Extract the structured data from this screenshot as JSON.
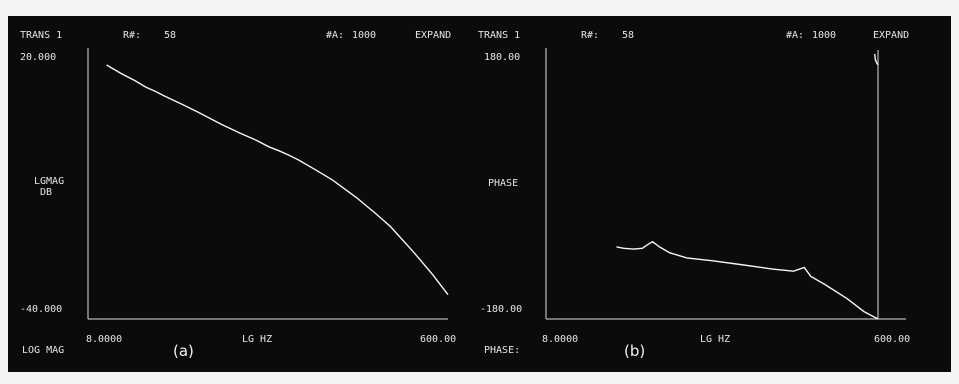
{
  "chart_data": [
    {
      "type": "line",
      "header": {
        "trans": "TRANS 1",
        "r_label": "R#:",
        "r_value": "58",
        "a_label": "#A:",
        "a_value": "1000",
        "mode": "EXPAND"
      },
      "ylabel": [
        "LGMAG",
        "DB"
      ],
      "xlabel": "LG HZ",
      "y_tick_labels": [
        "20.000",
        "-40.000"
      ],
      "x_tick_labels": [
        "8.0000",
        "600.00"
      ],
      "footer_label": "LOG MAG",
      "caption": "(a)",
      "ylim": [
        -40,
        20
      ],
      "xlim": [
        8,
        600
      ],
      "x_scale": "log",
      "grid": false,
      "series": [
        {
          "x": [
            10,
            12,
            14,
            16,
            18,
            20,
            25,
            30,
            40,
            50,
            60,
            70,
            80,
            90,
            100,
            120,
            150,
            200,
            250,
            300,
            400,
            500,
            600
          ],
          "y": [
            17.5,
            15.5,
            14.0,
            12.5,
            11.5,
            10.5,
            8.5,
            6.8,
            4.0,
            2.0,
            0.5,
            -1.0,
            -2.0,
            -3.0,
            -4.0,
            -6.0,
            -8.5,
            -12.5,
            -16.0,
            -19.0,
            -25.0,
            -30.0,
            -34.5
          ]
        }
      ]
    },
    {
      "type": "line",
      "header": {
        "trans": "TRANS 1",
        "r_label": "R#:",
        "r_value": "58",
        "a_label": "#A:",
        "a_value": "1000",
        "mode": "EXPAND"
      },
      "ylabel": [
        "PHASE"
      ],
      "xlabel": "LG HZ",
      "y_tick_labels": [
        "180.00",
        "-180.00"
      ],
      "x_tick_labels": [
        "8.0000",
        "600.00"
      ],
      "footer_label": "PHASE:",
      "caption": "(b)",
      "ylim": [
        -180,
        180
      ],
      "xlim": [
        8,
        600
      ],
      "x_scale": "log",
      "grid": false,
      "series": [
        {
          "x": [
            20,
            22,
            25,
            28,
            30,
            32,
            35,
            40,
            50,
            70,
            100,
            150,
            200,
            230,
            250,
            300,
            400,
            500,
            600
          ],
          "y": [
            -82,
            -84,
            -85,
            -84,
            -79,
            -75,
            -82,
            -90,
            -97,
            -101,
            -106,
            -112,
            -115,
            -110,
            -122,
            -133,
            -152,
            -170,
            -180
          ]
        },
        {
          "x": [
            575,
            580,
            590,
            600
          ],
          "y": [
            180,
            172,
            168,
            165
          ]
        }
      ]
    }
  ]
}
